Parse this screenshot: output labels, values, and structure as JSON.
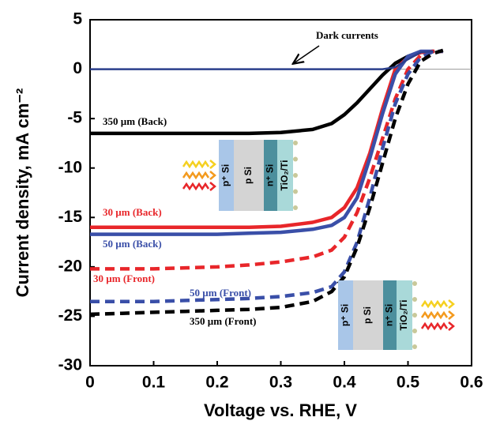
{
  "chart_data": {
    "type": "line",
    "x_label": "Voltage vs. RHE, V",
    "y_label": "Current density, mA cm⁻²",
    "annotation": "Dark currents",
    "inset_layers": [
      "p⁺ Si",
      "p Si",
      "n⁺ Si",
      "TiO₂/Ti"
    ],
    "inset_colors": [
      "#a9c6e8",
      "#d4d4d4",
      "#4c8f9d",
      "#a9d9d9"
    ],
    "x": [
      0,
      0.05,
      0.1,
      0.15,
      0.2,
      0.25,
      0.3,
      0.35,
      0.38,
      0.4,
      0.42,
      0.44,
      0.46,
      0.48,
      0.5,
      0.52,
      0.54,
      0.555
    ],
    "series": [
      {
        "name": "350 µm (Back)",
        "color": "#000000",
        "style": "solid",
        "values": [
          -6.5,
          -6.5,
          -6.5,
          -6.5,
          -6.5,
          -6.5,
          -6.4,
          -6.1,
          -5.5,
          -4.6,
          -3.4,
          -2,
          -0.6,
          0.6,
          1.3,
          1.7,
          1.8,
          null
        ]
      },
      {
        "name": "30 µm (Back)",
        "color": "#e8262a",
        "style": "solid",
        "values": [
          -16,
          -16,
          -16,
          -16,
          -16,
          -16,
          -15.9,
          -15.5,
          -15,
          -14,
          -12,
          -8.5,
          -4,
          0,
          1.2,
          1.7,
          1.8,
          null
        ]
      },
      {
        "name": "50 µm (Back)",
        "color": "#3a4fa8",
        "style": "solid",
        "values": [
          -16.7,
          -16.7,
          -16.7,
          -16.7,
          -16.7,
          -16.6,
          -16.5,
          -16.2,
          -15.8,
          -15,
          -13,
          -9,
          -4.5,
          -0.5,
          1.3,
          1.8,
          1.8,
          null
        ]
      },
      {
        "name": "30 µm (Front)",
        "color": "#e8262a",
        "style": "dashed",
        "values": [
          -20.2,
          -20.2,
          -20.2,
          -20.1,
          -20,
          -19.8,
          -19.5,
          -19,
          -18.3,
          -17,
          -14.5,
          -11,
          -7,
          -3,
          0,
          1.4,
          1.8,
          1.8
        ]
      },
      {
        "name": "50 µm (Front)",
        "color": "#3a4fa8",
        "style": "dashed",
        "values": [
          -23.5,
          -23.5,
          -23.5,
          -23.4,
          -23.3,
          -23.2,
          -23,
          -22.6,
          -22,
          -20.5,
          -17.5,
          -13,
          -8,
          -3.5,
          -0.5,
          1.2,
          1.8,
          1.8
        ]
      },
      {
        "name": "350 µm (Front)",
        "color": "#000000",
        "style": "dashed",
        "values": [
          -24.8,
          -24.7,
          -24.6,
          -24.5,
          -24.4,
          -24.3,
          -24.1,
          -23.5,
          -22.5,
          -21,
          -18,
          -14,
          -9.5,
          -5,
          -1.5,
          0.8,
          1.6,
          1.9
        ]
      },
      {
        "name": "Dark currents",
        "color": "#2b3f8c",
        "style": "solid",
        "values": [
          0,
          0,
          0,
          0,
          0,
          0,
          0,
          0,
          0,
          0,
          0,
          0,
          0,
          0.2,
          1,
          1.7,
          1.8,
          null
        ]
      }
    ],
    "xlim": [
      0,
      0.6
    ],
    "xticks": [
      0,
      0.1,
      0.2,
      0.3,
      0.4,
      0.5,
      0.6
    ],
    "ylim": [
      -30,
      5
    ],
    "yticks": [
      -30,
      -25,
      -20,
      -15,
      -10,
      -5,
      0,
      5
    ],
    "grid": false
  }
}
